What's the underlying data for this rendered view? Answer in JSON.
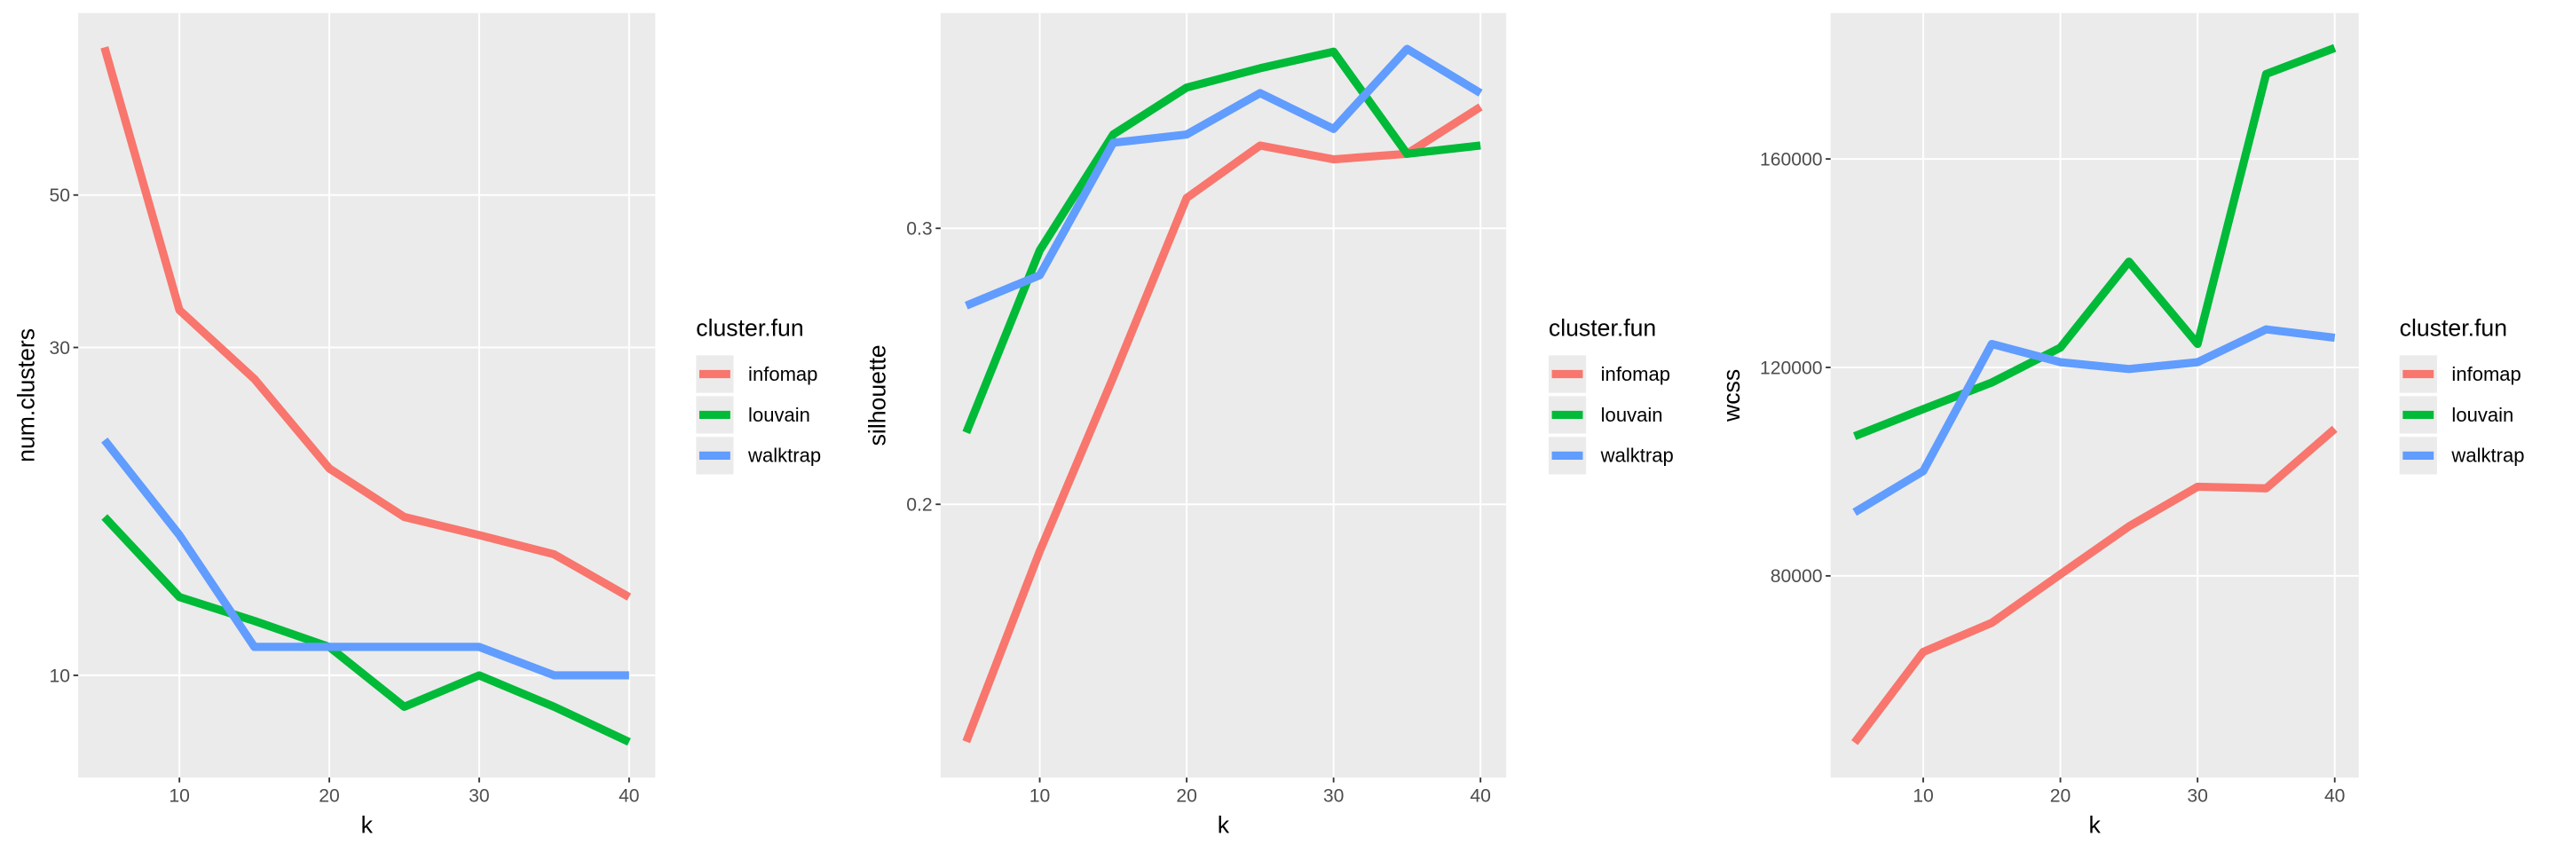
{
  "chart_data": [
    {
      "type": "line",
      "x_label": "k",
      "y_label": "num.clusters",
      "legend_title": "cluster.fun",
      "x": [
        5,
        10,
        15,
        20,
        25,
        30,
        35,
        40
      ],
      "series": [
        {
          "name": "infomap",
          "color": "#F8766D",
          "values": [
            82,
            34,
            27,
            20,
            17,
            16,
            15,
            13
          ]
        },
        {
          "name": "louvain",
          "color": "#00BA38",
          "values": [
            17,
            13,
            12,
            11,
            9,
            10,
            9,
            8
          ]
        },
        {
          "name": "walktrap",
          "color": "#619CFF",
          "values": [
            22,
            16,
            11,
            11,
            11,
            11,
            10,
            10
          ]
        }
      ],
      "xlim": [
        3.25,
        41.75
      ],
      "xticks": [
        10,
        20,
        30,
        40
      ],
      "ylim": [
        7.1,
        92
      ],
      "yticks": [
        10,
        30,
        50
      ],
      "log_y": true,
      "grid": true,
      "legend": "right"
    },
    {
      "type": "line",
      "x_label": "k",
      "y_label": "silhouette",
      "legend_title": "cluster.fun",
      "x": [
        5,
        10,
        15,
        20,
        25,
        30,
        35,
        40
      ],
      "series": [
        {
          "name": "infomap",
          "color": "#F8766D",
          "values": [
            0.114,
            0.183,
            0.246,
            0.311,
            0.33,
            0.325,
            0.327,
            0.344
          ]
        },
        {
          "name": "louvain",
          "color": "#00BA38",
          "values": [
            0.226,
            0.292,
            0.334,
            0.351,
            0.358,
            0.364,
            0.327,
            0.33
          ]
        },
        {
          "name": "walktrap",
          "color": "#619CFF",
          "values": [
            0.272,
            0.283,
            0.331,
            0.334,
            0.349,
            0.336,
            0.365,
            0.349
          ]
        }
      ],
      "xlim": [
        3.25,
        41.75
      ],
      "xticks": [
        10,
        20,
        30,
        40
      ],
      "ylim": [
        0.101,
        0.378
      ],
      "yticks": [
        0.2,
        0.3
      ],
      "log_y": false,
      "grid": true,
      "legend": "right"
    },
    {
      "type": "line",
      "x_label": "k",
      "y_label": "wcss",
      "legend_title": "cluster.fun",
      "x": [
        5,
        10,
        15,
        20,
        25,
        30,
        35,
        40
      ],
      "series": [
        {
          "name": "infomap",
          "color": "#F8766D",
          "values": [
            48000,
            65400,
            71000,
            80300,
            89500,
            97100,
            96800,
            108200
          ]
        },
        {
          "name": "louvain",
          "color": "#00BA38",
          "values": [
            106800,
            112000,
            117100,
            123800,
            140300,
            124500,
            176300,
            181300
          ]
        },
        {
          "name": "walktrap",
          "color": "#619CFF",
          "values": [
            92200,
            100100,
            124500,
            121000,
            119700,
            121000,
            127300,
            125700
          ]
        }
      ],
      "xlim": [
        3.25,
        41.75
      ],
      "xticks": [
        10,
        20,
        30,
        40
      ],
      "ylim": [
        41300,
        188000
      ],
      "yticks": [
        80000,
        120000,
        160000
      ],
      "log_y": false,
      "grid": true,
      "legend": "right"
    }
  ]
}
